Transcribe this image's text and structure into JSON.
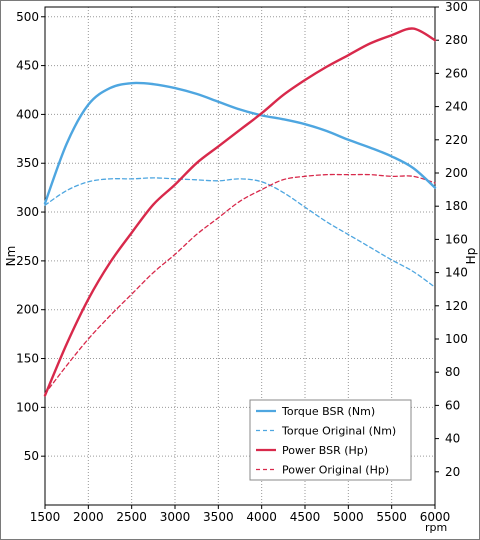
{
  "chart_data": {
    "type": "line",
    "x_label": "rpm",
    "y_left_label": "Nm",
    "y_right_label": "Hp",
    "x_range": [
      1500,
      6000
    ],
    "x_ticks": [
      1500,
      2000,
      2500,
      3000,
      3500,
      4000,
      4500,
      5000,
      5500,
      6000
    ],
    "y_left_range": [
      0,
      510
    ],
    "y_left_ticks": [
      50,
      100,
      150,
      200,
      250,
      300,
      350,
      400,
      450,
      500
    ],
    "y_right_range": [
      0,
      300
    ],
    "y_right_ticks": [
      20,
      40,
      60,
      80,
      100,
      120,
      140,
      160,
      180,
      200,
      220,
      240,
      260,
      280,
      300
    ],
    "grid": "dotted",
    "legend_position": "bottom-right",
    "series": [
      {
        "name": "Torque BSR (Nm)",
        "axis": "left",
        "color": "#4ea6e0",
        "dash": "solid",
        "x": [
          1500,
          1750,
          2000,
          2250,
          2500,
          2750,
          3000,
          3250,
          3500,
          3750,
          4000,
          4250,
          4500,
          4750,
          5000,
          5250,
          5500,
          5750,
          6000
        ],
        "y": [
          309,
          370,
          410,
          427,
          432,
          431,
          427,
          421,
          413,
          405,
          399,
          395,
          390,
          383,
          374,
          366,
          357,
          345,
          325
        ]
      },
      {
        "name": "Torque Original (Nm)",
        "axis": "left",
        "color": "#4ea6e0",
        "dash": "dashed",
        "x": [
          1500,
          1750,
          2000,
          2250,
          2500,
          2750,
          3000,
          3250,
          3500,
          3750,
          4000,
          4250,
          4500,
          4750,
          5000,
          5250,
          5500,
          5750,
          6000
        ],
        "y": [
          307,
          322,
          331,
          334,
          334,
          335,
          334,
          333,
          332,
          334,
          331,
          320,
          305,
          290,
          277,
          264,
          251,
          239,
          223
        ]
      },
      {
        "name": "Power BSR (Hp)",
        "axis": "right",
        "color": "#d8294b",
        "dash": "solid",
        "x": [
          1500,
          1750,
          2000,
          2250,
          2500,
          2750,
          3000,
          3250,
          3500,
          3750,
          4000,
          4250,
          4500,
          4750,
          5000,
          5250,
          5500,
          5750,
          6000
        ],
        "y": [
          66,
          97,
          124,
          146,
          164,
          181,
          193,
          206,
          216,
          226,
          236,
          247,
          256,
          264,
          271,
          278,
          283,
          287,
          280
        ]
      },
      {
        "name": "Power Original (Hp)",
        "axis": "right",
        "color": "#d8294b",
        "dash": "dashed",
        "x": [
          1500,
          1750,
          2000,
          2250,
          2500,
          2750,
          3000,
          3250,
          3500,
          3750,
          4000,
          4250,
          4500,
          4750,
          5000,
          5250,
          5500,
          5750,
          6000
        ],
        "y": [
          67,
          84,
          100,
          114,
          127,
          140,
          151,
          163,
          173,
          183,
          190,
          196,
          198,
          199,
          199,
          199,
          198,
          198,
          194
        ]
      }
    ]
  }
}
